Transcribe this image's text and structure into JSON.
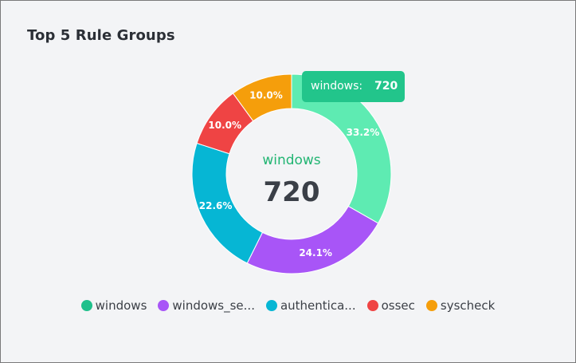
{
  "card": {
    "title": "Top 5 Rule Groups"
  },
  "tooltip": {
    "label": "windows:",
    "value": "720",
    "color": "#22c58b"
  },
  "center": {
    "label": "windows",
    "value": "720",
    "label_color": "#22b573"
  },
  "legend": [
    {
      "label": "windows",
      "color": "#1fc08b"
    },
    {
      "label": "windows_se...",
      "color": "#a855f7"
    },
    {
      "label": "authentica...",
      "color": "#06b6d4"
    },
    {
      "label": "ossec",
      "color": "#ef4444"
    },
    {
      "label": "syscheck",
      "color": "#f59e0b"
    }
  ],
  "chart_data": {
    "type": "pie",
    "title": "Top 5 Rule Groups",
    "categories": [
      "windows",
      "windows_se...",
      "authentica...",
      "ossec",
      "syscheck"
    ],
    "values": [
      33.2,
      24.1,
      22.6,
      10.0,
      10.0
    ],
    "labels": [
      "33.2%",
      "24.1%",
      "22.6%",
      "10.0%",
      "10.0%"
    ],
    "colors": [
      "#5eebb2",
      "#a855f7",
      "#06b6d4",
      "#ef4444",
      "#f59e0b"
    ],
    "hole": "donut",
    "legend": "bottom"
  }
}
